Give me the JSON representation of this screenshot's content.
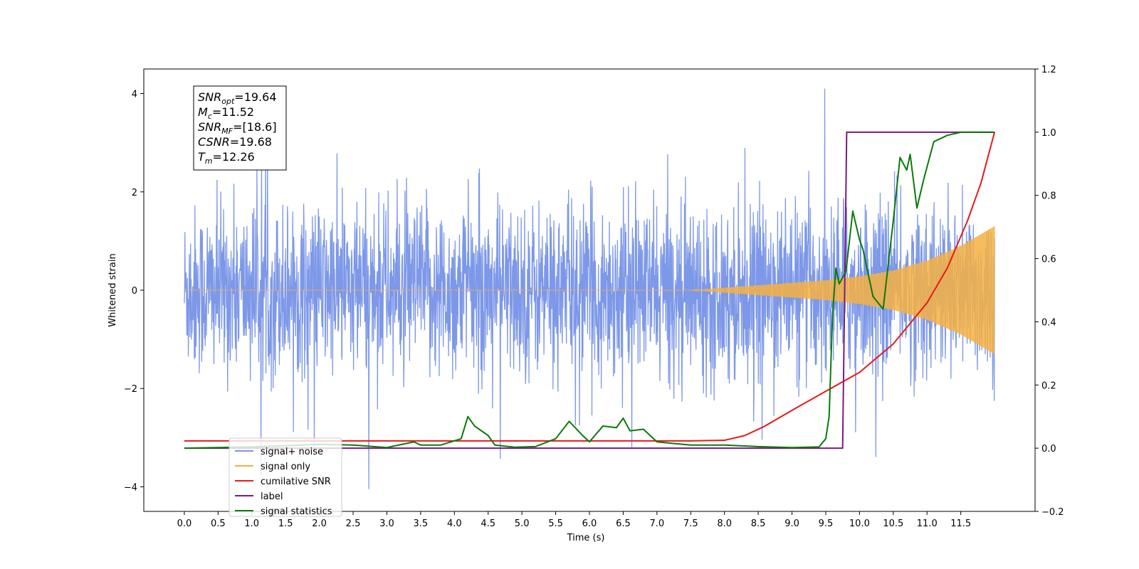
{
  "chart_data": {
    "type": "line",
    "xlabel": "Time (s)",
    "ylabel_left": "Whitened strain",
    "ylabel_right": "",
    "xlim": [
      -0.6,
      12.6
    ],
    "ylim_left": [
      -4.5,
      4.5
    ],
    "ylim_right": [
      -0.2,
      1.2
    ],
    "x_ticks": [
      "0.0",
      "0.5",
      "1.0",
      "1.5",
      "2.0",
      "2.5",
      "3.0",
      "3.5",
      "4.0",
      "4.5",
      "5.0",
      "5.5",
      "6.0",
      "6.5",
      "7.0",
      "7.5",
      "8.0",
      "8.5",
      "9.0",
      "9.5",
      "10.0",
      "10.5",
      "11.0",
      "11.5"
    ],
    "y_ticks_left": [
      "−4",
      "−2",
      "0",
      "2",
      "4"
    ],
    "y_ticks_right": [
      "−0.2",
      "0.0",
      "0.2",
      "0.4",
      "0.6",
      "0.8",
      "1.0",
      "1.2"
    ],
    "grid": false,
    "legend_position": "lower-left",
    "annotation": {
      "lines": [
        {
          "name": "SNR",
          "sub": "opt",
          "value": "=19.64"
        },
        {
          "name": "M",
          "sub": "c",
          "value": "=11.52"
        },
        {
          "name": "SNR",
          "sub": "MF",
          "value": "=[18.6]"
        },
        {
          "name": "CSNR",
          "sub": "",
          "value": "=19.68"
        },
        {
          "name": "T",
          "sub": "m",
          "value": "=12.26"
        }
      ]
    },
    "series": [
      {
        "name": "signal+ noise",
        "color": "#7a96e8",
        "axis": "left",
        "kind": "noise",
        "x_range": [
          0.0,
          12.0
        ],
        "typical_band": [
          -1.5,
          1.5
        ],
        "peaks_max": 4.1,
        "peaks_min": -4.1
      },
      {
        "name": "signal only",
        "color": "#f5b042",
        "axis": "left",
        "kind": "chirp",
        "x_range": [
          0.0,
          12.0
        ],
        "envelope": {
          "x": [
            0.0,
            7.5,
            8.0,
            8.5,
            9.0,
            9.5,
            10.0,
            10.5,
            11.0,
            11.5,
            12.0
          ],
          "amp": [
            0.0,
            0.0,
            0.05,
            0.1,
            0.15,
            0.2,
            0.28,
            0.4,
            0.6,
            0.9,
            1.3
          ]
        }
      },
      {
        "name": "cumilative SNR",
        "color": "#e8191a",
        "axis": "right",
        "x": [
          0.0,
          7.5,
          8.0,
          8.3,
          8.6,
          9.0,
          9.5,
          10.0,
          10.5,
          11.0,
          11.3,
          11.6,
          11.8,
          12.0
        ],
        "y": [
          0.023,
          0.023,
          0.025,
          0.04,
          0.07,
          0.12,
          0.18,
          0.24,
          0.33,
          0.46,
          0.57,
          0.72,
          0.84,
          1.0
        ]
      },
      {
        "name": "label",
        "color": "#7a1a7e",
        "axis": "right",
        "x": [
          0.0,
          9.75,
          9.81,
          12.0
        ],
        "y": [
          0.0,
          0.0,
          1.0,
          1.0
        ]
      },
      {
        "name": "signal statistics",
        "color": "#0a7a0a",
        "axis": "right",
        "x": [
          0.0,
          0.5,
          1.0,
          1.5,
          2.0,
          2.5,
          3.0,
          3.4,
          3.5,
          3.8,
          4.1,
          4.2,
          4.3,
          4.5,
          4.6,
          4.9,
          5.2,
          5.5,
          5.7,
          5.9,
          6.0,
          6.2,
          6.4,
          6.5,
          6.6,
          6.8,
          7.0,
          7.5,
          8.0,
          8.5,
          9.0,
          9.4,
          9.5,
          9.55,
          9.6,
          9.65,
          9.7,
          9.8,
          9.9,
          10.0,
          10.05,
          10.2,
          10.35,
          10.5,
          10.6,
          10.7,
          10.75,
          10.85,
          10.95,
          11.1,
          11.3,
          11.5,
          11.8,
          12.0
        ],
        "y": [
          0.0,
          0.002,
          0.004,
          0.008,
          0.012,
          0.01,
          0.002,
          0.02,
          0.01,
          0.01,
          0.03,
          0.1,
          0.07,
          0.04,
          0.01,
          0.003,
          0.005,
          0.03,
          0.085,
          0.04,
          0.02,
          0.07,
          0.065,
          0.095,
          0.055,
          0.06,
          0.02,
          0.01,
          0.01,
          0.005,
          0.002,
          0.004,
          0.03,
          0.1,
          0.42,
          0.57,
          0.52,
          0.56,
          0.75,
          0.66,
          0.63,
          0.48,
          0.44,
          0.72,
          0.92,
          0.88,
          0.93,
          0.76,
          0.85,
          0.97,
          0.99,
          1.0,
          1.0,
          1.0
        ]
      }
    ]
  }
}
